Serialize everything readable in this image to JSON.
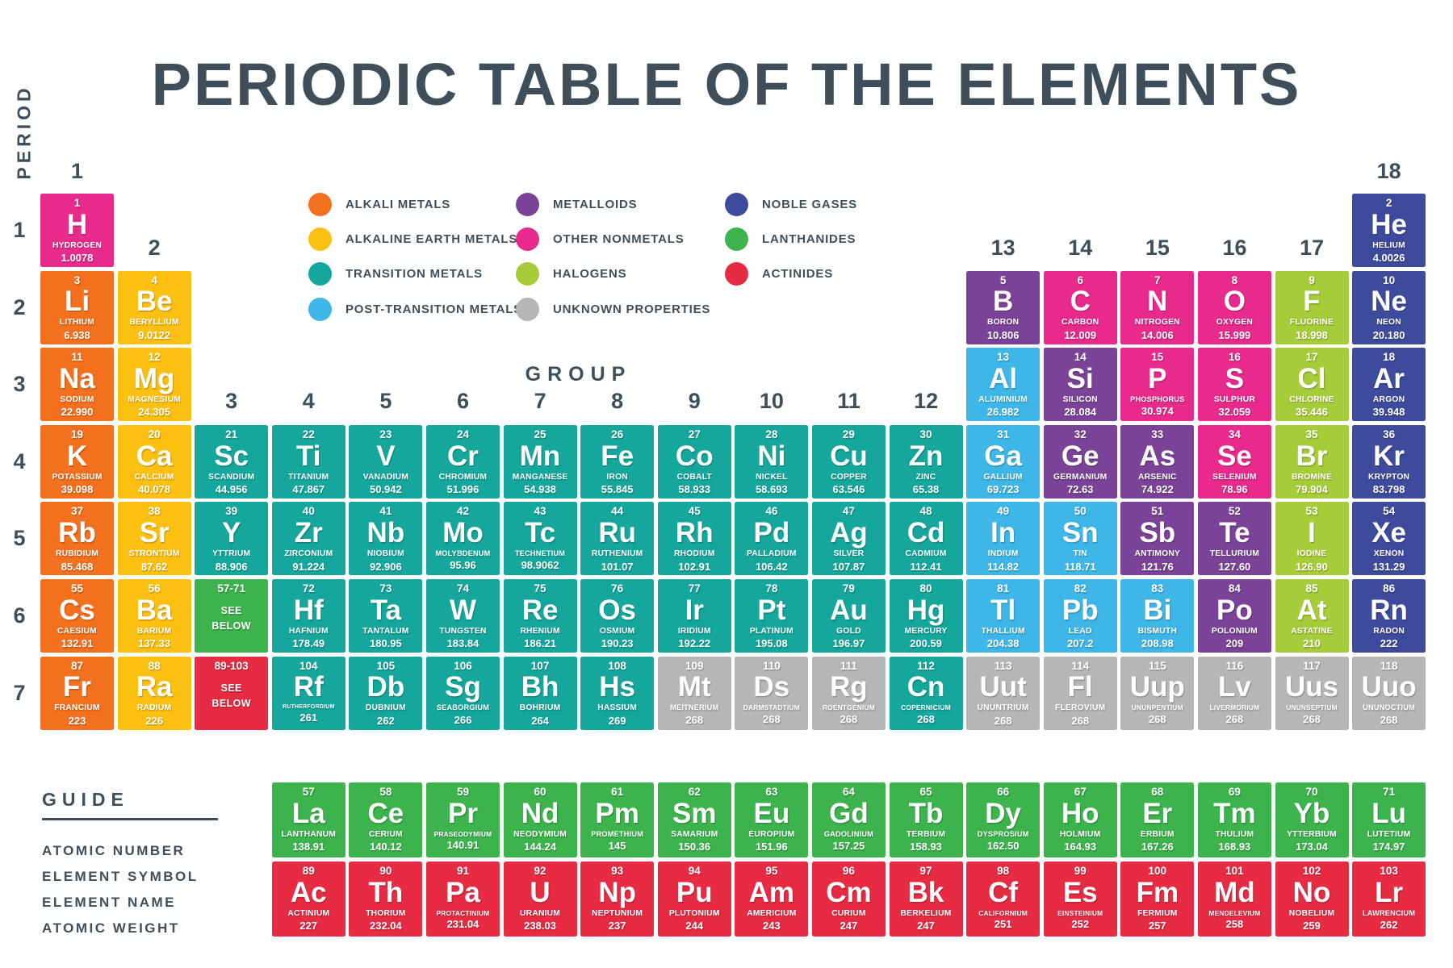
{
  "title": "PERIODIC TABLE OF THE ELEMENTS",
  "axis": {
    "period_label": "PERIOD",
    "group_label": "GROUP",
    "periods": [
      "1",
      "2",
      "3",
      "4",
      "5",
      "6",
      "7"
    ],
    "groups": [
      {
        "label": "1",
        "col": 1,
        "anchor": 1
      },
      {
        "label": "2",
        "col": 2,
        "anchor": 2
      },
      {
        "label": "3",
        "col": 3,
        "anchor": 4
      },
      {
        "label": "4",
        "col": 4,
        "anchor": 4
      },
      {
        "label": "5",
        "col": 5,
        "anchor": 4
      },
      {
        "label": "6",
        "col": 6,
        "anchor": 4
      },
      {
        "label": "7",
        "col": 7,
        "anchor": 4
      },
      {
        "label": "8",
        "col": 8,
        "anchor": 4
      },
      {
        "label": "9",
        "col": 9,
        "anchor": 4
      },
      {
        "label": "10",
        "col": 10,
        "anchor": 4
      },
      {
        "label": "11",
        "col": 11,
        "anchor": 4
      },
      {
        "label": "12",
        "col": 12,
        "anchor": 4
      },
      {
        "label": "13",
        "col": 13,
        "anchor": 2
      },
      {
        "label": "14",
        "col": 14,
        "anchor": 2
      },
      {
        "label": "15",
        "col": 15,
        "anchor": 2
      },
      {
        "label": "16",
        "col": 16,
        "anchor": 2
      },
      {
        "label": "17",
        "col": 17,
        "anchor": 2
      },
      {
        "label": "18",
        "col": 18,
        "anchor": 1
      }
    ]
  },
  "colors": {
    "alkali": "#F3701E",
    "alkaline": "#FCC012",
    "transition": "#16A79C",
    "postTransition": "#3FB6E8",
    "metalloid": "#7B4397",
    "otherNonmetal": "#E72A8B",
    "halogen": "#A6CC39",
    "noble": "#3E4A9C",
    "lanthanide": "#3CB34C",
    "actinide": "#E72B43",
    "unknown": "#B6B6B6",
    "text": "#3E4F5B"
  },
  "legend": [
    {
      "label": "ALKALI METALS",
      "key": "alkali",
      "col": 0,
      "row": 0
    },
    {
      "label": "ALKALINE EARTH METALS",
      "key": "alkaline",
      "col": 0,
      "row": 1
    },
    {
      "label": "TRANSITION METALS",
      "key": "transition",
      "col": 0,
      "row": 2
    },
    {
      "label": "POST-TRANSITION METALS",
      "key": "postTransition",
      "col": 0,
      "row": 3
    },
    {
      "label": "METALLOIDS",
      "key": "metalloid",
      "col": 1,
      "row": 0
    },
    {
      "label": "OTHER NONMETALS",
      "key": "otherNonmetal",
      "col": 1,
      "row": 1
    },
    {
      "label": "HALOGENS",
      "key": "halogen",
      "col": 1,
      "row": 2
    },
    {
      "label": "UNKNOWN PROPERTIES",
      "key": "unknown",
      "col": 1,
      "row": 3
    },
    {
      "label": "NOBLE GASES",
      "key": "noble",
      "col": 2,
      "row": 0
    },
    {
      "label": "LANTHANIDES",
      "key": "lanthanide",
      "col": 2,
      "row": 1
    },
    {
      "label": "ACTINIDES",
      "key": "actinide",
      "col": 2,
      "row": 2
    }
  ],
  "elements": [
    {
      "n": "1",
      "s": "H",
      "name": "HYDROGEN",
      "w": "1.0078",
      "c": "otherNonmetal",
      "g": 1,
      "p": 1
    },
    {
      "n": "2",
      "s": "He",
      "name": "HELIUM",
      "w": "4.0026",
      "c": "noble",
      "g": 18,
      "p": 1
    },
    {
      "n": "3",
      "s": "Li",
      "name": "LITHIUM",
      "w": "6.938",
      "c": "alkali",
      "g": 1,
      "p": 2
    },
    {
      "n": "4",
      "s": "Be",
      "name": "BERYLLIUM",
      "w": "9.0122",
      "c": "alkaline",
      "g": 2,
      "p": 2
    },
    {
      "n": "5",
      "s": "B",
      "name": "BORON",
      "w": "10.806",
      "c": "metalloid",
      "g": 13,
      "p": 2
    },
    {
      "n": "6",
      "s": "C",
      "name": "CARBON",
      "w": "12.009",
      "c": "otherNonmetal",
      "g": 14,
      "p": 2
    },
    {
      "n": "7",
      "s": "N",
      "name": "NITROGEN",
      "w": "14.006",
      "c": "otherNonmetal",
      "g": 15,
      "p": 2
    },
    {
      "n": "8",
      "s": "O",
      "name": "OXYGEN",
      "w": "15.999",
      "c": "otherNonmetal",
      "g": 16,
      "p": 2
    },
    {
      "n": "9",
      "s": "F",
      "name": "FLUORINE",
      "w": "18.998",
      "c": "halogen",
      "g": 17,
      "p": 2
    },
    {
      "n": "10",
      "s": "Ne",
      "name": "NEON",
      "w": "20.180",
      "c": "noble",
      "g": 18,
      "p": 2
    },
    {
      "n": "11",
      "s": "Na",
      "name": "SODIUM",
      "w": "22.990",
      "c": "alkali",
      "g": 1,
      "p": 3
    },
    {
      "n": "12",
      "s": "Mg",
      "name": "MAGNESIUM",
      "w": "24.305",
      "c": "alkaline",
      "g": 2,
      "p": 3
    },
    {
      "n": "13",
      "s": "Al",
      "name": "ALUMINIUM",
      "w": "26.982",
      "c": "postTransition",
      "g": 13,
      "p": 3
    },
    {
      "n": "14",
      "s": "Si",
      "name": "SILICON",
      "w": "28.084",
      "c": "metalloid",
      "g": 14,
      "p": 3
    },
    {
      "n": "15",
      "s": "P",
      "name": "PHOSPHORUS",
      "w": "30.974",
      "c": "otherNonmetal",
      "g": 15,
      "p": 3
    },
    {
      "n": "16",
      "s": "S",
      "name": "SULPHUR",
      "w": "32.059",
      "c": "otherNonmetal",
      "g": 16,
      "p": 3
    },
    {
      "n": "17",
      "s": "Cl",
      "name": "CHLORINE",
      "w": "35.446",
      "c": "halogen",
      "g": 17,
      "p": 3
    },
    {
      "n": "18",
      "s": "Ar",
      "name": "ARGON",
      "w": "39.948",
      "c": "noble",
      "g": 18,
      "p": 3
    },
    {
      "n": "19",
      "s": "K",
      "name": "POTASSIUM",
      "w": "39.098",
      "c": "alkali",
      "g": 1,
      "p": 4
    },
    {
      "n": "20",
      "s": "Ca",
      "name": "CALCIUM",
      "w": "40.078",
      "c": "alkaline",
      "g": 2,
      "p": 4
    },
    {
      "n": "21",
      "s": "Sc",
      "name": "SCANDIUM",
      "w": "44.956",
      "c": "transition",
      "g": 3,
      "p": 4
    },
    {
      "n": "22",
      "s": "Ti",
      "name": "TITANIUM",
      "w": "47.867",
      "c": "transition",
      "g": 4,
      "p": 4
    },
    {
      "n": "23",
      "s": "V",
      "name": "VANADIUM",
      "w": "50.942",
      "c": "transition",
      "g": 5,
      "p": 4
    },
    {
      "n": "24",
      "s": "Cr",
      "name": "CHROMIUM",
      "w": "51.996",
      "c": "transition",
      "g": 6,
      "p": 4
    },
    {
      "n": "25",
      "s": "Mn",
      "name": "MANGANESE",
      "w": "54.938",
      "c": "transition",
      "g": 7,
      "p": 4
    },
    {
      "n": "26",
      "s": "Fe",
      "name": "IRON",
      "w": "55.845",
      "c": "transition",
      "g": 8,
      "p": 4
    },
    {
      "n": "27",
      "s": "Co",
      "name": "COBALT",
      "w": "58.933",
      "c": "transition",
      "g": 9,
      "p": 4
    },
    {
      "n": "28",
      "s": "Ni",
      "name": "NICKEL",
      "w": "58.693",
      "c": "transition",
      "g": 10,
      "p": 4
    },
    {
      "n": "29",
      "s": "Cu",
      "name": "COPPER",
      "w": "63.546",
      "c": "transition",
      "g": 11,
      "p": 4
    },
    {
      "n": "30",
      "s": "Zn",
      "name": "ZINC",
      "w": "65.38",
      "c": "transition",
      "g": 12,
      "p": 4
    },
    {
      "n": "31",
      "s": "Ga",
      "name": "GALLIUM",
      "w": "69.723",
      "c": "postTransition",
      "g": 13,
      "p": 4
    },
    {
      "n": "32",
      "s": "Ge",
      "name": "GERMANIUM",
      "w": "72.63",
      "c": "metalloid",
      "g": 14,
      "p": 4
    },
    {
      "n": "33",
      "s": "As",
      "name": "ARSENIC",
      "w": "74.922",
      "c": "metalloid",
      "g": 15,
      "p": 4
    },
    {
      "n": "34",
      "s": "Se",
      "name": "SELENIUM",
      "w": "78.96",
      "c": "otherNonmetal",
      "g": 16,
      "p": 4
    },
    {
      "n": "35",
      "s": "Br",
      "name": "BROMINE",
      "w": "79.904",
      "c": "halogen",
      "g": 17,
      "p": 4
    },
    {
      "n": "36",
      "s": "Kr",
      "name": "KRYPTON",
      "w": "83.798",
      "c": "noble",
      "g": 18,
      "p": 4
    },
    {
      "n": "37",
      "s": "Rb",
      "name": "RUBIDIUM",
      "w": "85.468",
      "c": "alkali",
      "g": 1,
      "p": 5
    },
    {
      "n": "38",
      "s": "Sr",
      "name": "STRONTIUM",
      "w": "87.62",
      "c": "alkaline",
      "g": 2,
      "p": 5
    },
    {
      "n": "39",
      "s": "Y",
      "name": "YTTRIUM",
      "w": "88.906",
      "c": "transition",
      "g": 3,
      "p": 5
    },
    {
      "n": "40",
      "s": "Zr",
      "name": "ZIRCONIUM",
      "w": "91.224",
      "c": "transition",
      "g": 4,
      "p": 5
    },
    {
      "n": "41",
      "s": "Nb",
      "name": "NIOBIUM",
      "w": "92.906",
      "c": "transition",
      "g": 5,
      "p": 5
    },
    {
      "n": "42",
      "s": "Mo",
      "name": "MOLYBDENUM",
      "w": "95.96",
      "c": "transition",
      "g": 6,
      "p": 5
    },
    {
      "n": "43",
      "s": "Tc",
      "name": "TECHNETIUM",
      "w": "98.9062",
      "c": "transition",
      "g": 7,
      "p": 5
    },
    {
      "n": "44",
      "s": "Ru",
      "name": "RUTHENIUM",
      "w": "101.07",
      "c": "transition",
      "g": 8,
      "p": 5
    },
    {
      "n": "45",
      "s": "Rh",
      "name": "RHODIUM",
      "w": "102.91",
      "c": "transition",
      "g": 9,
      "p": 5
    },
    {
      "n": "46",
      "s": "Pd",
      "name": "PALLADIUM",
      "w": "106.42",
      "c": "transition",
      "g": 10,
      "p": 5
    },
    {
      "n": "47",
      "s": "Ag",
      "name": "SILVER",
      "w": "107.87",
      "c": "transition",
      "g": 11,
      "p": 5
    },
    {
      "n": "48",
      "s": "Cd",
      "name": "CADMIUM",
      "w": "112.41",
      "c": "transition",
      "g": 12,
      "p": 5
    },
    {
      "n": "49",
      "s": "In",
      "name": "INDIUM",
      "w": "114.82",
      "c": "postTransition",
      "g": 13,
      "p": 5
    },
    {
      "n": "50",
      "s": "Sn",
      "name": "TIN",
      "w": "118.71",
      "c": "postTransition",
      "g": 14,
      "p": 5
    },
    {
      "n": "51",
      "s": "Sb",
      "name": "ANTIMONY",
      "w": "121.76",
      "c": "metalloid",
      "g": 15,
      "p": 5
    },
    {
      "n": "52",
      "s": "Te",
      "name": "TELLURIUM",
      "w": "127.60",
      "c": "metalloid",
      "g": 16,
      "p": 5
    },
    {
      "n": "53",
      "s": "I",
      "name": "IODINE",
      "w": "126.90",
      "c": "halogen",
      "g": 17,
      "p": 5
    },
    {
      "n": "54",
      "s": "Xe",
      "name": "XENON",
      "w": "131.29",
      "c": "noble",
      "g": 18,
      "p": 5
    },
    {
      "n": "55",
      "s": "Cs",
      "name": "CAESIUM",
      "w": "132.91",
      "c": "alkali",
      "g": 1,
      "p": 6
    },
    {
      "n": "56",
      "s": "Ba",
      "name": "BARIUM",
      "w": "137.33",
      "c": "alkaline",
      "g": 2,
      "p": 6
    },
    {
      "n": "72",
      "s": "Hf",
      "name": "HAFNIUM",
      "w": "178.49",
      "c": "transition",
      "g": 4,
      "p": 6
    },
    {
      "n": "73",
      "s": "Ta",
      "name": "TANTALUM",
      "w": "180.95",
      "c": "transition",
      "g": 5,
      "p": 6
    },
    {
      "n": "74",
      "s": "W",
      "name": "TUNGSTEN",
      "w": "183.84",
      "c": "transition",
      "g": 6,
      "p": 6
    },
    {
      "n": "75",
      "s": "Re",
      "name": "RHENIUM",
      "w": "186.21",
      "c": "transition",
      "g": 7,
      "p": 6
    },
    {
      "n": "76",
      "s": "Os",
      "name": "OSMIUM",
      "w": "190.23",
      "c": "transition",
      "g": 8,
      "p": 6
    },
    {
      "n": "77",
      "s": "Ir",
      "name": "IRIDIUM",
      "w": "192.22",
      "c": "transition",
      "g": 9,
      "p": 6
    },
    {
      "n": "78",
      "s": "Pt",
      "name": "PLATINUM",
      "w": "195.08",
      "c": "transition",
      "g": 10,
      "p": 6
    },
    {
      "n": "79",
      "s": "Au",
      "name": "GOLD",
      "w": "196.97",
      "c": "transition",
      "g": 11,
      "p": 6
    },
    {
      "n": "80",
      "s": "Hg",
      "name": "MERCURY",
      "w": "200.59",
      "c": "transition",
      "g": 12,
      "p": 6
    },
    {
      "n": "81",
      "s": "Tl",
      "name": "THALLIUM",
      "w": "204.38",
      "c": "postTransition",
      "g": 13,
      "p": 6
    },
    {
      "n": "82",
      "s": "Pb",
      "name": "LEAD",
      "w": "207.2",
      "c": "postTransition",
      "g": 14,
      "p": 6
    },
    {
      "n": "83",
      "s": "Bi",
      "name": "BISMUTH",
      "w": "208.98",
      "c": "postTransition",
      "g": 15,
      "p": 6
    },
    {
      "n": "84",
      "s": "Po",
      "name": "POLONIUM",
      "w": "209",
      "c": "metalloid",
      "g": 16,
      "p": 6
    },
    {
      "n": "85",
      "s": "At",
      "name": "ASTATINE",
      "w": "210",
      "c": "halogen",
      "g": 17,
      "p": 6
    },
    {
      "n": "86",
      "s": "Rn",
      "name": "RADON",
      "w": "222",
      "c": "noble",
      "g": 18,
      "p": 6
    },
    {
      "n": "87",
      "s": "Fr",
      "name": "FRANCIUM",
      "w": "223",
      "c": "alkali",
      "g": 1,
      "p": 7
    },
    {
      "n": "88",
      "s": "Ra",
      "name": "RADIUM",
      "w": "226",
      "c": "alkaline",
      "g": 2,
      "p": 7
    },
    {
      "n": "104",
      "s": "Rf",
      "name": "RUTHERFORDIUM",
      "w": "261",
      "c": "transition",
      "g": 4,
      "p": 7
    },
    {
      "n": "105",
      "s": "Db",
      "name": "DUBNIUM",
      "w": "262",
      "c": "transition",
      "g": 5,
      "p": 7
    },
    {
      "n": "106",
      "s": "Sg",
      "name": "SEABORGIUM",
      "w": "266",
      "c": "transition",
      "g": 6,
      "p": 7
    },
    {
      "n": "107",
      "s": "Bh",
      "name": "BOHRIUM",
      "w": "264",
      "c": "transition",
      "g": 7,
      "p": 7
    },
    {
      "n": "108",
      "s": "Hs",
      "name": "HASSIUM",
      "w": "269",
      "c": "transition",
      "g": 8,
      "p": 7
    },
    {
      "n": "109",
      "s": "Mt",
      "name": "MEITNERIUM",
      "w": "268",
      "c": "unknown",
      "g": 9,
      "p": 7
    },
    {
      "n": "110",
      "s": "Ds",
      "name": "DARMSTADTIUM",
      "w": "268",
      "c": "unknown",
      "g": 10,
      "p": 7
    },
    {
      "n": "111",
      "s": "Rg",
      "name": "ROENTGENIUM",
      "w": "268",
      "c": "unknown",
      "g": 11,
      "p": 7
    },
    {
      "n": "112",
      "s": "Cn",
      "name": "COPERNICIUM",
      "w": "268",
      "c": "transition",
      "g": 12,
      "p": 7
    },
    {
      "n": "113",
      "s": "Uut",
      "name": "UNUNTRIUM",
      "w": "268",
      "c": "unknown",
      "g": 13,
      "p": 7
    },
    {
      "n": "114",
      "s": "Fl",
      "name": "FLEROVIUM",
      "w": "268",
      "c": "unknown",
      "g": 14,
      "p": 7
    },
    {
      "n": "115",
      "s": "Uup",
      "name": "UNUNPENTIUM",
      "w": "268",
      "c": "unknown",
      "g": 15,
      "p": 7
    },
    {
      "n": "116",
      "s": "Lv",
      "name": "LIVERMORIUM",
      "w": "268",
      "c": "unknown",
      "g": 16,
      "p": 7
    },
    {
      "n": "117",
      "s": "Uus",
      "name": "UNUNSEPTIUM",
      "w": "268",
      "c": "unknown",
      "g": 17,
      "p": 7
    },
    {
      "n": "118",
      "s": "Uuo",
      "name": "UNUNOCTIUM",
      "w": "268",
      "c": "unknown",
      "g": 18,
      "p": 7
    }
  ],
  "placeholders": [
    {
      "range": "57-71",
      "lines": [
        "SEE",
        "BELOW"
      ],
      "c": "lanthanide",
      "g": 3,
      "p": 6
    },
    {
      "range": "89-103",
      "lines": [
        "SEE",
        "BELOW"
      ],
      "c": "actinide",
      "g": 3,
      "p": 7
    }
  ],
  "lanthanides": [
    {
      "n": "57",
      "s": "La",
      "name": "LANTHANUM",
      "w": "138.91"
    },
    {
      "n": "58",
      "s": "Ce",
      "name": "CERIUM",
      "w": "140.12"
    },
    {
      "n": "59",
      "s": "Pr",
      "name": "PRASEODYMIUM",
      "w": "140.91"
    },
    {
      "n": "60",
      "s": "Nd",
      "name": "NEODYMIUM",
      "w": "144.24"
    },
    {
      "n": "61",
      "s": "Pm",
      "name": "PROMETHIUM",
      "w": "145"
    },
    {
      "n": "62",
      "s": "Sm",
      "name": "SAMARIUM",
      "w": "150.36"
    },
    {
      "n": "63",
      "s": "Eu",
      "name": "EUROPIUM",
      "w": "151.96"
    },
    {
      "n": "64",
      "s": "Gd",
      "name": "GADOLINIUM",
      "w": "157.25"
    },
    {
      "n": "65",
      "s": "Tb",
      "name": "TERBIUM",
      "w": "158.93"
    },
    {
      "n": "66",
      "s": "Dy",
      "name": "DYSPROSIUM",
      "w": "162.50"
    },
    {
      "n": "67",
      "s": "Ho",
      "name": "HOLMIUM",
      "w": "164.93"
    },
    {
      "n": "68",
      "s": "Er",
      "name": "ERBIUM",
      "w": "167.26"
    },
    {
      "n": "69",
      "s": "Tm",
      "name": "THULIUM",
      "w": "168.93"
    },
    {
      "n": "70",
      "s": "Yb",
      "name": "YTTERBIUM",
      "w": "173.04"
    },
    {
      "n": "71",
      "s": "Lu",
      "name": "LUTETIUM",
      "w": "174.97"
    }
  ],
  "actinides": [
    {
      "n": "89",
      "s": "Ac",
      "name": "ACTINIUM",
      "w": "227"
    },
    {
      "n": "90",
      "s": "Th",
      "name": "THORIUM",
      "w": "232.04"
    },
    {
      "n": "91",
      "s": "Pa",
      "name": "PROTACTINIUM",
      "w": "231.04"
    },
    {
      "n": "92",
      "s": "U",
      "name": "URANIUM",
      "w": "238.03"
    },
    {
      "n": "93",
      "s": "Np",
      "name": "NEPTUNIUM",
      "w": "237"
    },
    {
      "n": "94",
      "s": "Pu",
      "name": "PLUTONIUM",
      "w": "244"
    },
    {
      "n": "95",
      "s": "Am",
      "name": "AMERICIUM",
      "w": "243"
    },
    {
      "n": "96",
      "s": "Cm",
      "name": "CURIUM",
      "w": "247"
    },
    {
      "n": "97",
      "s": "Bk",
      "name": "BERKELIUM",
      "w": "247"
    },
    {
      "n": "98",
      "s": "Cf",
      "name": "CALIFORNIUM",
      "w": "251"
    },
    {
      "n": "99",
      "s": "Es",
      "name": "EINSTEINIUM",
      "w": "252"
    },
    {
      "n": "100",
      "s": "Fm",
      "name": "FERMIUM",
      "w": "257"
    },
    {
      "n": "101",
      "s": "Md",
      "name": "MENDELEVIUM",
      "w": "258"
    },
    {
      "n": "102",
      "s": "No",
      "name": "NOBELIUM",
      "w": "259"
    },
    {
      "n": "103",
      "s": "Lr",
      "name": "LAWRENCIUM",
      "w": "262"
    }
  ],
  "guide": {
    "title": "GUIDE",
    "lines": [
      "ATOMIC NUMBER",
      "ELEMENT SYMBOL",
      "ELEMENT NAME",
      "ATOMIC WEIGHT"
    ]
  }
}
